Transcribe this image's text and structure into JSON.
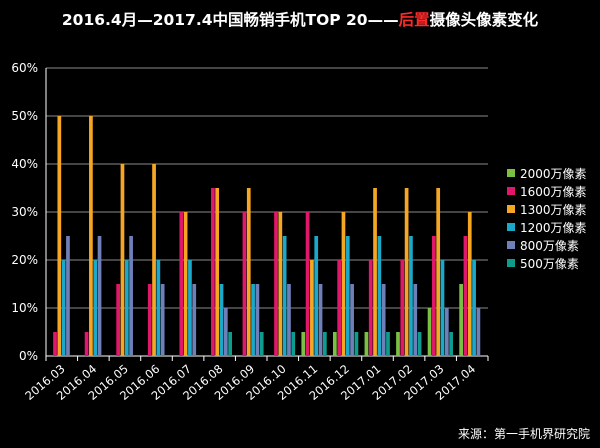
{
  "title": {
    "before": "2016.4月—2017.4中国畅销手机TOP 20——",
    "highlight": "后置",
    "after": "摄像头像素变化"
  },
  "source": "来源：第一手机界研究院",
  "colors": {
    "background": "#000000",
    "axis": "#ffffff",
    "grid": "#8a8a8a"
  },
  "chart_data": {
    "type": "bar",
    "title": "2016.4月—2017.4中国畅销手机TOP 20——后置摄像头像素变化",
    "xlabel": "",
    "ylabel": "",
    "ylim": [
      0,
      0.6
    ],
    "yticks": [
      "0%",
      "10%",
      "20%",
      "30%",
      "40%",
      "50%",
      "60%"
    ],
    "grid": true,
    "legend_position": "right",
    "categories": [
      "2016.03",
      "2016.04",
      "2016.05",
      "2016.06",
      "2016.07",
      "2016.08",
      "2016.09",
      "2016.10",
      "2016.11",
      "2016.12",
      "2017.01",
      "2017.02",
      "2017.03",
      "2017.04"
    ],
    "series": [
      {
        "name": "2000万像素",
        "color": "#7ac143",
        "values": [
          0,
          0,
          0,
          0,
          0,
          0,
          0,
          0,
          0.05,
          0.05,
          0.05,
          0.05,
          0.1,
          0.15
        ]
      },
      {
        "name": "1600万像素",
        "color": "#e0186c",
        "values": [
          0.05,
          0.05,
          0.15,
          0.15,
          0.3,
          0.35,
          0.3,
          0.3,
          0.3,
          0.2,
          0.2,
          0.2,
          0.25,
          0.25
        ]
      },
      {
        "name": "1300万像素",
        "color": "#f5a623",
        "values": [
          0.5,
          0.5,
          0.4,
          0.4,
          0.3,
          0.35,
          0.35,
          0.3,
          0.2,
          0.3,
          0.35,
          0.35,
          0.35,
          0.3
        ]
      },
      {
        "name": "1200万像素",
        "color": "#1ba9c9",
        "values": [
          0.2,
          0.2,
          0.2,
          0.2,
          0.2,
          0.15,
          0.15,
          0.25,
          0.25,
          0.25,
          0.25,
          0.25,
          0.2,
          0.2
        ]
      },
      {
        "name": "800万像素",
        "color": "#6f7fb8",
        "values": [
          0.25,
          0.25,
          0.25,
          0.15,
          0.15,
          0.1,
          0.15,
          0.15,
          0.15,
          0.15,
          0.15,
          0.15,
          0.1,
          0.1
        ]
      },
      {
        "name": "500万像素",
        "color": "#0e9c8e",
        "values": [
          0,
          0,
          0,
          0,
          0,
          0.05,
          0.05,
          0.05,
          0.05,
          0.05,
          0.05,
          0.05,
          0.05,
          0
        ]
      }
    ]
  }
}
